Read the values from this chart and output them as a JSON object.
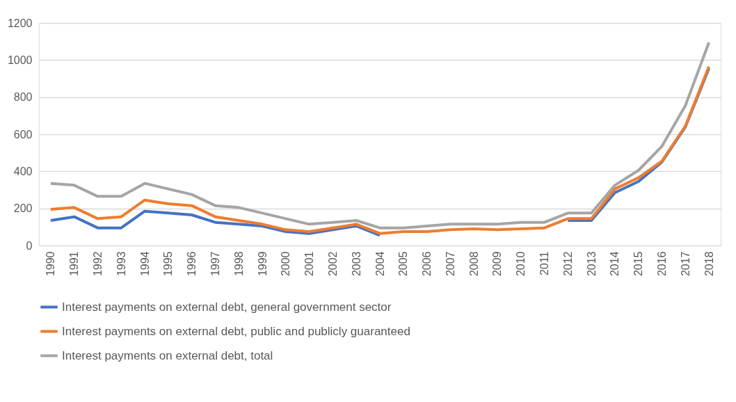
{
  "chart_data": {
    "type": "line",
    "categories": [
      "1990",
      "1991",
      "1992",
      "1993",
      "1994",
      "1995",
      "1996",
      "1997",
      "1998",
      "1999",
      "2000",
      "2001",
      "2002",
      "2003",
      "2004",
      "2005",
      "2006",
      "2007",
      "2008",
      "2009",
      "2010",
      "2011",
      "2012",
      "2013",
      "2014",
      "2015",
      "2016",
      "2017",
      "2018"
    ],
    "series": [
      {
        "name": "Interest payments on external debt, general government sector",
        "color": "#4472c4",
        "values": [
          135,
          155,
          95,
          95,
          185,
          175,
          165,
          125,
          115,
          105,
          75,
          65,
          85,
          105,
          55,
          null,
          null,
          null,
          null,
          null,
          null,
          null,
          135,
          135,
          285,
          345,
          450,
          640,
          955
        ]
      },
      {
        "name": "Interest payments on external debt, public and publicly guaranteed",
        "color": "#ed7d31",
        "values": [
          195,
          205,
          145,
          155,
          245,
          225,
          215,
          155,
          135,
          115,
          85,
          75,
          95,
          115,
          65,
          75,
          75,
          85,
          90,
          85,
          90,
          95,
          145,
          145,
          305,
          365,
          455,
          645,
          965
        ]
      },
      {
        "name": "Interest payments on external debt, total",
        "color": "#a5a5a5",
        "values": [
          335,
          325,
          265,
          265,
          335,
          305,
          275,
          215,
          205,
          175,
          145,
          115,
          125,
          135,
          95,
          95,
          105,
          115,
          115,
          115,
          125,
          125,
          175,
          175,
          325,
          405,
          535,
          755,
          1095
        ]
      }
    ],
    "ylim": [
      0,
      1200
    ],
    "yticks": [
      0,
      200,
      400,
      600,
      800,
      1000,
      1200
    ],
    "grid": "y",
    "legend": "bottom",
    "marker": "none",
    "line_style": "solid"
  }
}
